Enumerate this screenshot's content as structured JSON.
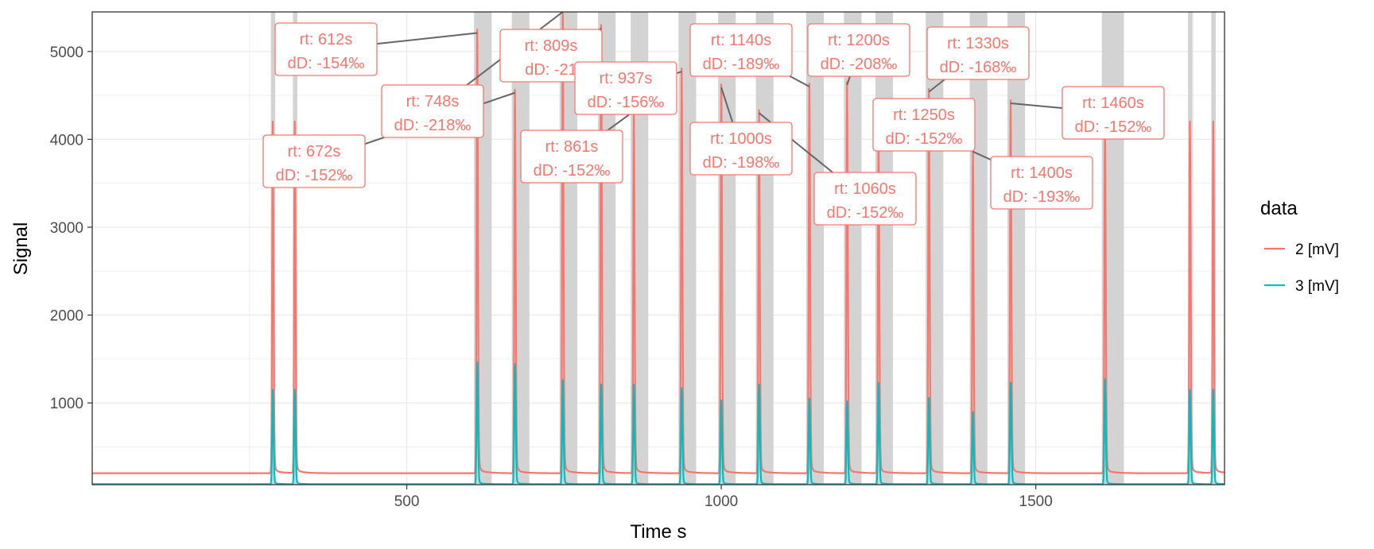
{
  "chart_data": {
    "type": "line",
    "title": "",
    "xlabel": "Time s",
    "ylabel": "Signal",
    "xlim": [
      0,
      1800
    ],
    "ylim": [
      70,
      5450
    ],
    "x_ticks": [
      500,
      1000,
      1500
    ],
    "y_ticks": [
      1000,
      2000,
      3000,
      4000,
      5000
    ],
    "grid": true,
    "legend": {
      "title": "data",
      "position": "right",
      "entries": [
        {
          "label": "2 [mV]",
          "color": "#F8766D"
        },
        {
          "label": "3 [mV]",
          "color": "#00BFC4"
        }
      ]
    },
    "baseline": {
      "2 [mV]": 200,
      "3 [mV]": 75
    },
    "peaks": [
      {
        "rt": 287,
        "s2": 4170,
        "s3": 1140
      },
      {
        "rt": 322,
        "s2": 4170,
        "s3": 1140
      },
      {
        "rt": 612,
        "s2": 5210,
        "s3": 1450
      },
      {
        "rt": 672,
        "s2": 4530,
        "s3": 1430
      },
      {
        "rt": 748,
        "s2": 5450,
        "s3": 1250
      },
      {
        "rt": 809,
        "s2": 5260,
        "s3": 1200
      },
      {
        "rt": 861,
        "s2": 4320,
        "s3": 1200
      },
      {
        "rt": 937,
        "s2": 4770,
        "s3": 1160
      },
      {
        "rt": 1000,
        "s2": 4590,
        "s3": 1020
      },
      {
        "rt": 1060,
        "s2": 4300,
        "s3": 1200
      },
      {
        "rt": 1140,
        "s2": 4600,
        "s3": 1040
      },
      {
        "rt": 1200,
        "s2": 4620,
        "s3": 1010
      },
      {
        "rt": 1250,
        "s2": 4000,
        "s3": 1220
      },
      {
        "rt": 1330,
        "s2": 4540,
        "s3": 1050
      },
      {
        "rt": 1400,
        "s2": 3860,
        "s3": 890
      },
      {
        "rt": 1460,
        "s2": 4410,
        "s3": 1220
      },
      {
        "rt": 1610,
        "s2": 4170,
        "s3": 1260
      },
      {
        "rt": 1745,
        "s2": 4170,
        "s3": 1140
      },
      {
        "rt": 1782,
        "s2": 4170,
        "s3": 1140
      }
    ],
    "highlight_bands": [
      [
        284,
        291
      ],
      [
        319,
        326
      ],
      [
        607,
        635
      ],
      [
        667,
        695
      ],
      [
        743,
        771
      ],
      [
        804,
        832
      ],
      [
        856,
        884
      ],
      [
        932,
        960
      ],
      [
        995,
        1023
      ],
      [
        1055,
        1083
      ],
      [
        1135,
        1163
      ],
      [
        1195,
        1223
      ],
      [
        1245,
        1273
      ],
      [
        1325,
        1353
      ],
      [
        1395,
        1423
      ],
      [
        1455,
        1483
      ],
      [
        1605,
        1640
      ],
      [
        1742,
        1749
      ],
      [
        1779,
        1786
      ]
    ],
    "annotations": [
      {
        "text": [
          "rt: 612s",
          "dD: -154‰"
        ],
        "rt": 612
      },
      {
        "text": [
          "rt: 672s",
          "dD: -152‰"
        ],
        "rt": 672
      },
      {
        "text": [
          "rt: 748s",
          "dD: -218‰"
        ],
        "rt": 748
      },
      {
        "text": [
          "rt: 809s",
          "dD: -21"
        ],
        "rt": 809
      },
      {
        "text": [
          "rt: 861s",
          "dD: -152‰"
        ],
        "rt": 861
      },
      {
        "text": [
          "rt: 937s",
          "dD: -156‰"
        ],
        "rt": 937
      },
      {
        "text": [
          "rt: 1000s",
          "dD: -198‰"
        ],
        "rt": 1000
      },
      {
        "text": [
          "rt: 1060s",
          "dD: -152‰"
        ],
        "rt": 1060
      },
      {
        "text": [
          "rt: 1140s",
          "dD: -189‰"
        ],
        "rt": 1140
      },
      {
        "text": [
          "rt: 1200s",
          "dD: -208‰"
        ],
        "rt": 1200
      },
      {
        "text": [
          "rt: 1250s",
          "dD: -152‰"
        ],
        "rt": 1250
      },
      {
        "text": [
          "rt: 1330s",
          "dD: -168‰"
        ],
        "rt": 1330
      },
      {
        "text": [
          "rt: 1400s",
          "dD: -193‰"
        ],
        "rt": 1400
      },
      {
        "text": [
          "rt: 1460s",
          "dD: -152‰"
        ],
        "rt": 1460
      }
    ]
  }
}
